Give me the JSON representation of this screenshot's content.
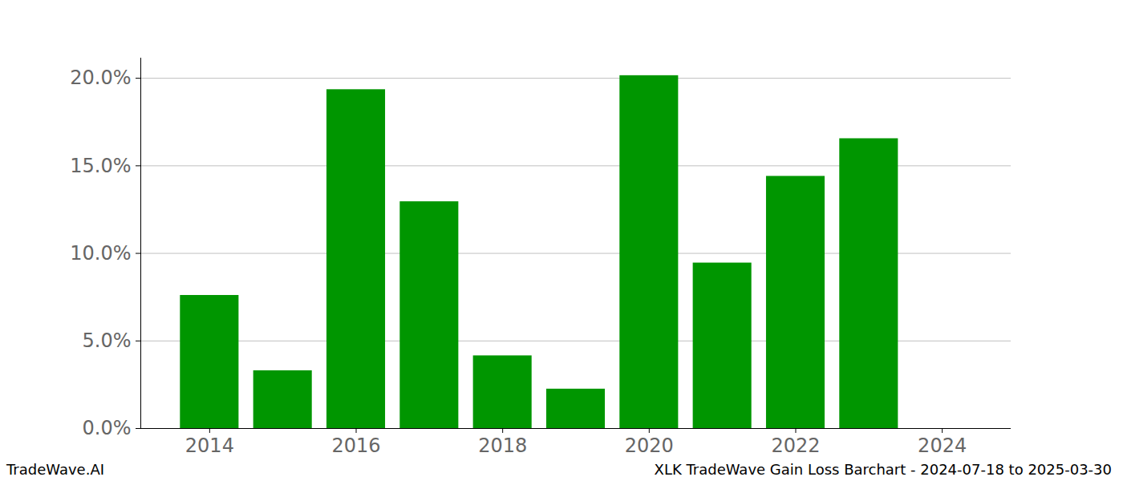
{
  "chart_data": {
    "type": "bar",
    "title": "XLK TradeWave Gain Loss Barchart - 2024-07-18 to 2025-03-30",
    "caption": "TradeWave.AI",
    "x": [
      2014,
      2015,
      2016,
      2017,
      2018,
      2019,
      2020,
      2021,
      2022,
      2023,
      2024
    ],
    "values": [
      7.6,
      3.3,
      19.35,
      12.95,
      4.15,
      2.25,
      20.15,
      9.45,
      14.4,
      16.55,
      0
    ],
    "color": "#009600",
    "xlim": [
      2013.06,
      2024.94
    ],
    "xticks": [
      2014,
      2016,
      2018,
      2020,
      2022,
      2024
    ],
    "ylim": [
      0,
      21.15
    ],
    "yticks": [
      {
        "value": 0,
        "label": "0.0%"
      },
      {
        "value": 5,
        "label": "5.0%"
      },
      {
        "value": 10,
        "label": "10.0%"
      },
      {
        "value": 15,
        "label": "15.0%"
      },
      {
        "value": 20,
        "label": "20.0%"
      }
    ],
    "grid": true
  }
}
